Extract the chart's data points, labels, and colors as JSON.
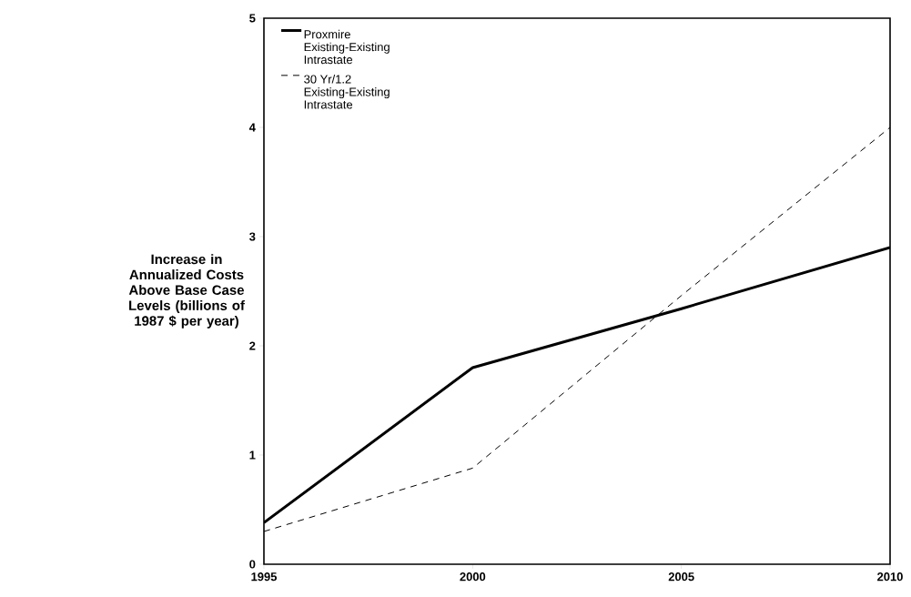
{
  "chart_data": {
    "type": "line",
    "ylabel": "Increase in Annualized Costs Above Base Case Levels (billions of 1987 $ per year)",
    "x": [
      1995,
      2000,
      2005,
      2010
    ],
    "series": [
      {
        "name": "Proxmire Existing-Existing Intrastate",
        "color": "#000000",
        "values": [
          0.38,
          1.8,
          2.34,
          2.9
        ],
        "line_style": "solid"
      },
      {
        "name": "30 Yr/1.2 Existing-Existing Intrastate",
        "color": "#000000",
        "values": [
          0.3,
          0.88,
          2.46,
          4.0
        ],
        "line_style": "dashed"
      }
    ],
    "xlim": [
      1995,
      2010
    ],
    "xticks": [
      1995,
      2000,
      2005,
      2010
    ],
    "ylim": [
      0,
      5
    ],
    "yticks": [
      0,
      1,
      2,
      3,
      4,
      5
    ],
    "grid": false,
    "legend": "top left",
    "marker": "none"
  }
}
